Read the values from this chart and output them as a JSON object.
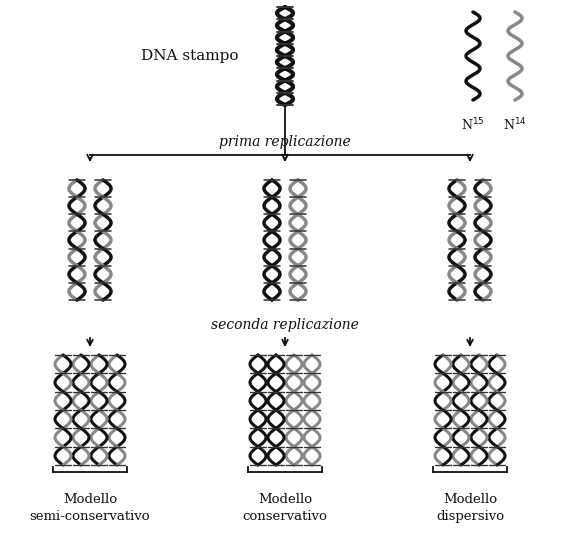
{
  "background_color": "#ffffff",
  "text_color": "#111111",
  "dna_stamp_label": "DNA stampo",
  "prima_rep_label": "prima replicazione",
  "seconda_rep_label": "seconda replicazione",
  "model_labels": [
    "Modello\nsemi-conservativo",
    "Modello\nconservativo",
    "Modello\ndispersivo"
  ],
  "black_color": "#111111",
  "gray_color": "#888888",
  "mid_gray": "#aaaaaa"
}
